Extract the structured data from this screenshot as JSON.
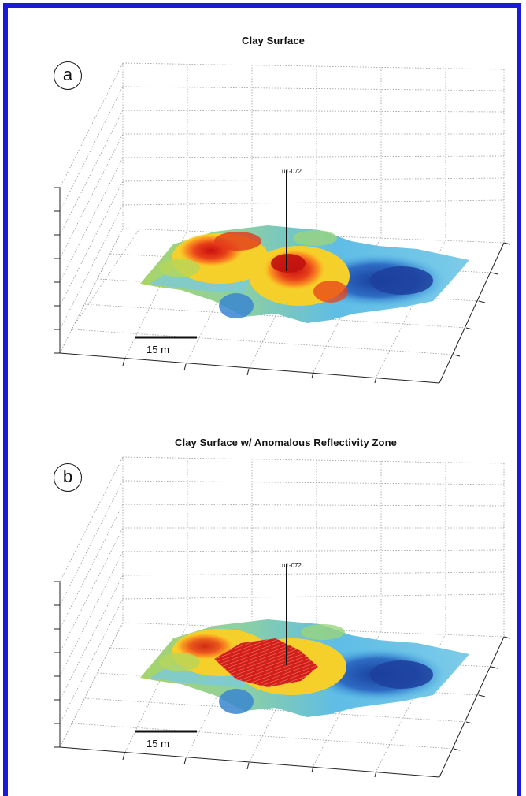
{
  "panels": [
    {
      "letter": "a",
      "title": "Clay Surface",
      "well_label": "u1-072",
      "scale_label": "15 m"
    },
    {
      "letter": "b",
      "title": "Clay Surface w/   Anomalous Reflectivity Zone",
      "well_label": "u1-072",
      "scale_label": "15 m"
    }
  ],
  "colors": {
    "frame": "#1a1ad8",
    "high": "#d7191c",
    "mid_high": "#fdae30",
    "mid": "#f5e52a",
    "mid_low": "#6cc06a",
    "low": "#4fb3e8",
    "lowest": "#1f4aa8"
  }
}
